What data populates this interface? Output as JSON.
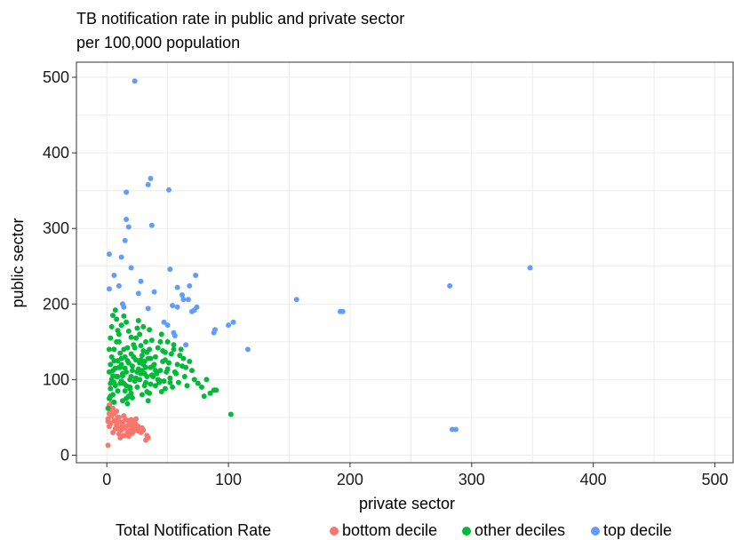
{
  "chart_data": {
    "type": "scatter",
    "title_lines": [
      "TB notification rate in public and private sector",
      "per 100,000 population"
    ],
    "xlabel": "private sector",
    "ylabel": "public sector",
    "xlim": [
      -25,
      515
    ],
    "ylim": [
      -10,
      520
    ],
    "x_ticks": [
      0,
      100,
      200,
      300,
      400,
      500
    ],
    "y_ticks": [
      0,
      100,
      200,
      300,
      400,
      500
    ],
    "grid": true,
    "legend": {
      "title": "Total Notification Rate",
      "position": "bottom",
      "entries": [
        {
          "name": "bottom decile",
          "color": "#F8766D"
        },
        {
          "name": "other deciles",
          "color": "#00BA38"
        },
        {
          "name": "top decile",
          "color": "#619CFF"
        }
      ]
    },
    "series": [
      {
        "name": "bottom decile",
        "color": "#F8766D",
        "points": [
          [
            1,
            13
          ],
          [
            2,
            38
          ],
          [
            1,
            48
          ],
          [
            3,
            58
          ],
          [
            2,
            66
          ],
          [
            4,
            70
          ],
          [
            5,
            62
          ],
          [
            6,
            55
          ],
          [
            7,
            45
          ],
          [
            8,
            40
          ],
          [
            9,
            35
          ],
          [
            10,
            28
          ],
          [
            11,
            23
          ],
          [
            12,
            33
          ],
          [
            13,
            43
          ],
          [
            14,
            52
          ],
          [
            15,
            48
          ],
          [
            16,
            38
          ],
          [
            17,
            30
          ],
          [
            18,
            25
          ],
          [
            19,
            42
          ],
          [
            20,
            47
          ],
          [
            21,
            36
          ],
          [
            22,
            32
          ],
          [
            23,
            44
          ],
          [
            24,
            40
          ],
          [
            25,
            35
          ],
          [
            26,
            38
          ],
          [
            28,
            30
          ],
          [
            29,
            36
          ],
          [
            30,
            33
          ],
          [
            32,
            20
          ],
          [
            33,
            26
          ],
          [
            34,
            23
          ],
          [
            4,
            52
          ],
          [
            6,
            46
          ],
          [
            8,
            58
          ],
          [
            10,
            50
          ],
          [
            12,
            38
          ],
          [
            3,
            42
          ],
          [
            5,
            30
          ],
          [
            7,
            35
          ],
          [
            9,
            50
          ],
          [
            11,
            44
          ],
          [
            15,
            36
          ],
          [
            17,
            46
          ],
          [
            19,
            33
          ],
          [
            21,
            29
          ],
          [
            24,
            48
          ],
          [
            26,
            32
          ],
          [
            14,
            26
          ],
          [
            18,
            40
          ],
          [
            22,
            40
          ],
          [
            2,
            55
          ],
          [
            1,
            45
          ]
        ]
      },
      {
        "name": "other deciles",
        "color": "#00BA38",
        "points": [
          [
            1,
            62
          ],
          [
            2,
            75
          ],
          [
            3,
            88
          ],
          [
            4,
            100
          ],
          [
            5,
            112
          ],
          [
            6,
            125
          ],
          [
            2,
            140
          ],
          [
            3,
            155
          ],
          [
            4,
            170
          ],
          [
            5,
            185
          ],
          [
            7,
            192
          ],
          [
            8,
            180
          ],
          [
            9,
            165
          ],
          [
            10,
            150
          ],
          [
            11,
            135
          ],
          [
            12,
            120
          ],
          [
            13,
            108
          ],
          [
            14,
            95
          ],
          [
            15,
            85
          ],
          [
            16,
            75
          ],
          [
            17,
            68
          ],
          [
            18,
            78
          ],
          [
            19,
            90
          ],
          [
            20,
            104
          ],
          [
            21,
            118
          ],
          [
            22,
            130
          ],
          [
            23,
            142
          ],
          [
            24,
            155
          ],
          [
            25,
            168
          ],
          [
            26,
            178
          ],
          [
            27,
            160
          ],
          [
            28,
            145
          ],
          [
            29,
            132
          ],
          [
            30,
            120
          ],
          [
            31,
            108
          ],
          [
            32,
            96
          ],
          [
            33,
            84
          ],
          [
            34,
            72
          ],
          [
            35,
            82
          ],
          [
            36,
            94
          ],
          [
            37,
            106
          ],
          [
            38,
            118
          ],
          [
            40,
            130
          ],
          [
            42,
            142
          ],
          [
            44,
            150
          ],
          [
            46,
            138
          ],
          [
            48,
            126
          ],
          [
            50,
            114
          ],
          [
            52,
            102
          ],
          [
            54,
            90
          ],
          [
            56,
            110
          ],
          [
            58,
            120
          ],
          [
            60,
            132
          ],
          [
            62,
            118
          ],
          [
            64,
            104
          ],
          [
            66,
            92
          ],
          [
            68,
            124
          ],
          [
            70,
            112
          ],
          [
            72,
            100
          ],
          [
            75,
            95
          ],
          [
            78,
            90
          ],
          [
            82,
            100
          ],
          [
            85,
            82
          ],
          [
            88,
            86
          ],
          [
            90,
            86
          ],
          [
            80,
            78
          ],
          [
            102,
            54
          ],
          [
            6,
            96
          ],
          [
            8,
            104
          ],
          [
            10,
            116
          ],
          [
            12,
            128
          ],
          [
            14,
            140
          ],
          [
            16,
            110
          ],
          [
            18,
            122
          ],
          [
            20,
            134
          ],
          [
            22,
            146
          ],
          [
            24,
            102
          ],
          [
            26,
            114
          ],
          [
            28,
            126
          ],
          [
            30,
            138
          ],
          [
            32,
            150
          ],
          [
            34,
            128
          ],
          [
            36,
            116
          ],
          [
            38,
            104
          ],
          [
            40,
            92
          ],
          [
            42,
            100
          ],
          [
            44,
            112
          ],
          [
            46,
            124
          ],
          [
            48,
            136
          ],
          [
            5,
            80
          ],
          [
            7,
            92
          ],
          [
            9,
            104
          ],
          [
            11,
            116
          ],
          [
            13,
            72
          ],
          [
            15,
            130
          ],
          [
            17,
            142
          ],
          [
            19,
            88
          ],
          [
            21,
            76
          ],
          [
            23,
            98
          ],
          [
            25,
            110
          ],
          [
            27,
            122
          ],
          [
            29,
            80
          ],
          [
            31,
            92
          ],
          [
            33,
            104
          ],
          [
            35,
            140
          ],
          [
            37,
            152
          ],
          [
            39,
            120
          ],
          [
            41,
            108
          ],
          [
            43,
            96
          ],
          [
            45,
            84
          ],
          [
            47,
            98
          ],
          [
            49,
            110
          ],
          [
            51,
            122
          ],
          [
            53,
            134
          ],
          [
            55,
            146
          ],
          [
            57,
            108
          ],
          [
            59,
            96
          ],
          [
            61,
            140
          ],
          [
            63,
            128
          ],
          [
            65,
            116
          ],
          [
            3,
            120
          ],
          [
            4,
            130
          ],
          [
            6,
            140
          ],
          [
            8,
            150
          ],
          [
            10,
            160
          ],
          [
            12,
            172
          ],
          [
            14,
            184
          ],
          [
            16,
            176
          ],
          [
            18,
            164
          ],
          [
            20,
            156
          ],
          [
            30,
            170
          ],
          [
            35,
            166
          ],
          [
            45,
            160
          ],
          [
            50,
            150
          ],
          [
            55,
            140
          ],
          [
            3,
            95
          ],
          [
            5,
            105
          ],
          [
            7,
            115
          ],
          [
            9,
            85
          ],
          [
            11,
            95
          ],
          [
            13,
            105
          ],
          [
            15,
            115
          ],
          [
            17,
            125
          ],
          [
            19,
            100
          ],
          [
            21,
            112
          ],
          [
            2,
            110
          ],
          [
            3,
            78
          ],
          [
            6,
            70
          ],
          [
            9,
            125
          ],
          [
            12,
            98
          ],
          [
            16,
            92
          ],
          [
            20,
            82
          ],
          [
            24,
            126
          ],
          [
            28,
            108
          ],
          [
            32,
            116
          ],
          [
            36,
            128
          ],
          [
            40,
            112
          ],
          [
            44,
            98
          ],
          [
            48,
            88
          ],
          [
            52,
            96
          ],
          [
            25,
            90
          ],
          [
            27,
            100
          ],
          [
            29,
            112
          ],
          [
            31,
            124
          ],
          [
            33,
            136
          ]
        ]
      },
      {
        "name": "top decile",
        "color": "#619CFF",
        "points": [
          [
            23,
            495
          ],
          [
            36,
            366
          ],
          [
            34,
            358
          ],
          [
            51,
            351
          ],
          [
            16,
            348
          ],
          [
            16,
            312
          ],
          [
            18,
            302
          ],
          [
            37,
            304
          ],
          [
            2,
            266
          ],
          [
            15,
            284
          ],
          [
            12,
            262
          ],
          [
            6,
            238
          ],
          [
            20,
            248
          ],
          [
            28,
            230
          ],
          [
            52,
            246
          ],
          [
            73,
            238
          ],
          [
            2,
            220
          ],
          [
            10,
            224
          ],
          [
            13,
            200
          ],
          [
            14,
            196
          ],
          [
            26,
            214
          ],
          [
            34,
            194
          ],
          [
            39,
            216
          ],
          [
            58,
            222
          ],
          [
            63,
            206
          ],
          [
            67,
            206
          ],
          [
            68,
            224
          ],
          [
            47,
            176
          ],
          [
            50,
            172
          ],
          [
            55,
            162
          ],
          [
            56,
            158
          ],
          [
            58,
            196
          ],
          [
            70,
            190
          ],
          [
            72,
            192
          ],
          [
            65,
            146
          ],
          [
            74,
            196
          ],
          [
            88,
            162
          ],
          [
            89,
            166
          ],
          [
            100,
            172
          ],
          [
            104,
            176
          ],
          [
            116,
            140
          ],
          [
            156,
            206
          ],
          [
            192,
            190
          ],
          [
            194,
            190
          ],
          [
            282,
            224
          ],
          [
            348,
            248
          ],
          [
            284,
            34
          ],
          [
            287,
            34
          ],
          [
            54,
            198
          ],
          [
            62,
            212
          ]
        ]
      }
    ]
  }
}
